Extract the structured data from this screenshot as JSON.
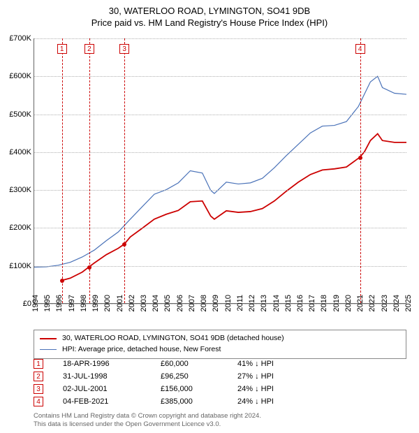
{
  "title": {
    "line1": "30, WATERLOO ROAD, LYMINGTON, SO41 9DB",
    "line2": "Price paid vs. HM Land Registry's House Price Index (HPI)"
  },
  "chart": {
    "type": "line",
    "x_range": [
      1994,
      2025
    ],
    "y_range": [
      0,
      700000
    ],
    "y_ticks": [
      0,
      100000,
      200000,
      300000,
      400000,
      500000,
      600000,
      700000
    ],
    "y_tick_labels": [
      "£0",
      "£100K",
      "£200K",
      "£300K",
      "£400K",
      "£500K",
      "£600K",
      "£700K"
    ],
    "x_ticks": [
      1994,
      1995,
      1996,
      1997,
      1998,
      1999,
      2000,
      2001,
      2002,
      2003,
      2004,
      2005,
      2006,
      2007,
      2008,
      2009,
      2010,
      2011,
      2012,
      2013,
      2014,
      2015,
      2016,
      2017,
      2018,
      2019,
      2020,
      2021,
      2022,
      2023,
      2024,
      2025
    ],
    "grid_color": "#b0b0b0",
    "axis_color": "#666666",
    "background_color": "#ffffff",
    "fontsize_axis": 11,
    "sale_marker_color": "#cc0000",
    "series": [
      {
        "name": "property",
        "label": "30, WATERLOO ROAD, LYMINGTON, SO41 9DB (detached house)",
        "color": "#cc0000",
        "line_width": 1.8,
        "points": [
          [
            1996.3,
            60000
          ],
          [
            1997,
            66000
          ],
          [
            1998,
            82000
          ],
          [
            1998.58,
            96250
          ],
          [
            1999,
            106000
          ],
          [
            2000,
            128000
          ],
          [
            2001,
            145000
          ],
          [
            2001.5,
            156000
          ],
          [
            2002,
            175000
          ],
          [
            2003,
            198000
          ],
          [
            2004,
            222000
          ],
          [
            2005,
            235000
          ],
          [
            2006,
            245000
          ],
          [
            2007,
            268000
          ],
          [
            2008,
            270000
          ],
          [
            2008.7,
            230000
          ],
          [
            2009,
            222000
          ],
          [
            2010,
            244000
          ],
          [
            2011,
            240000
          ],
          [
            2012,
            242000
          ],
          [
            2013,
            250000
          ],
          [
            2014,
            270000
          ],
          [
            2015,
            296000
          ],
          [
            2016,
            320000
          ],
          [
            2017,
            340000
          ],
          [
            2018,
            352000
          ],
          [
            2019,
            355000
          ],
          [
            2020,
            360000
          ],
          [
            2021.09,
            385000
          ],
          [
            2021.5,
            400000
          ],
          [
            2022,
            430000
          ],
          [
            2022.6,
            448000
          ],
          [
            2023,
            430000
          ],
          [
            2024,
            425000
          ],
          [
            2025,
            425000
          ]
        ]
      },
      {
        "name": "hpi",
        "label": "HPI: Average price, detached house, New Forest",
        "color": "#4a72b8",
        "line_width": 1.2,
        "points": [
          [
            1994,
            95000
          ],
          [
            1995,
            96000
          ],
          [
            1996,
            100000
          ],
          [
            1997,
            108000
          ],
          [
            1998,
            122000
          ],
          [
            1999,
            140000
          ],
          [
            2000,
            165000
          ],
          [
            2001,
            188000
          ],
          [
            2002,
            222000
          ],
          [
            2003,
            255000
          ],
          [
            2004,
            288000
          ],
          [
            2005,
            300000
          ],
          [
            2006,
            318000
          ],
          [
            2007,
            350000
          ],
          [
            2008,
            344000
          ],
          [
            2008.7,
            298000
          ],
          [
            2009,
            290000
          ],
          [
            2010,
            320000
          ],
          [
            2011,
            315000
          ],
          [
            2012,
            318000
          ],
          [
            2013,
            330000
          ],
          [
            2014,
            358000
          ],
          [
            2015,
            390000
          ],
          [
            2016,
            420000
          ],
          [
            2017,
            450000
          ],
          [
            2018,
            468000
          ],
          [
            2019,
            470000
          ],
          [
            2020,
            480000
          ],
          [
            2021,
            520000
          ],
          [
            2022,
            585000
          ],
          [
            2022.6,
            600000
          ],
          [
            2023,
            570000
          ],
          [
            2024,
            555000
          ],
          [
            2025,
            552000
          ]
        ]
      }
    ],
    "sales": [
      {
        "idx": "1",
        "year": 1996.3,
        "date": "18-APR-1996",
        "price": "£60,000",
        "diff": "41% ↓ HPI",
        "price_num": 60000
      },
      {
        "idx": "2",
        "year": 1998.58,
        "date": "31-JUL-1998",
        "price": "£96,250",
        "diff": "27% ↓ HPI",
        "price_num": 96250
      },
      {
        "idx": "3",
        "year": 2001.5,
        "date": "02-JUL-2001",
        "price": "£156,000",
        "diff": "24% ↓ HPI",
        "price_num": 156000
      },
      {
        "idx": "4",
        "year": 2021.09,
        "date": "04-FEB-2021",
        "price": "£385,000",
        "diff": "24% ↓ HPI",
        "price_num": 385000
      }
    ]
  },
  "footer": {
    "line1": "Contains HM Land Registry data © Crown copyright and database right 2024.",
    "line2": "This data is licensed under the Open Government Licence v3.0."
  }
}
